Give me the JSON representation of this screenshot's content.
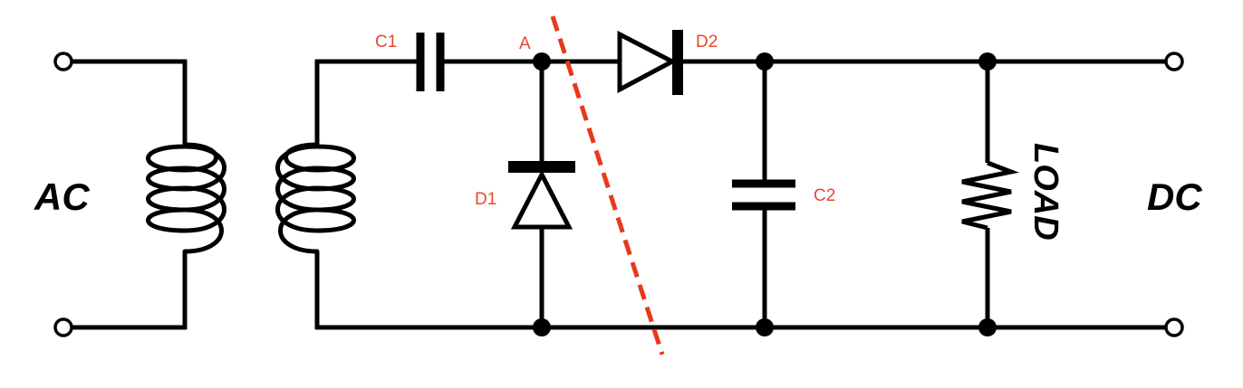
{
  "labels": {
    "input": "AC",
    "output": "DC",
    "load": "LOAD",
    "c1": "C1",
    "c2": "C2",
    "d1": "D1",
    "d2": "D2",
    "node_a": "A"
  },
  "colors": {
    "wire": "#000000",
    "component_label": "#e8472f",
    "dashed_cut_line": "#e8391c",
    "background": "#ffffff"
  },
  "components": [
    {
      "id": "transformer",
      "type": "transformer",
      "windings": 2
    },
    {
      "id": "C1",
      "type": "capacitor",
      "connection": "series, top rail"
    },
    {
      "id": "D1",
      "type": "diode",
      "connection": "shunt, node A to bottom rail"
    },
    {
      "id": "D2",
      "type": "diode",
      "connection": "series, node A to output"
    },
    {
      "id": "C2",
      "type": "capacitor",
      "connection": "shunt, output filter"
    },
    {
      "id": "LOAD",
      "type": "resistor",
      "connection": "shunt, output"
    }
  ]
}
